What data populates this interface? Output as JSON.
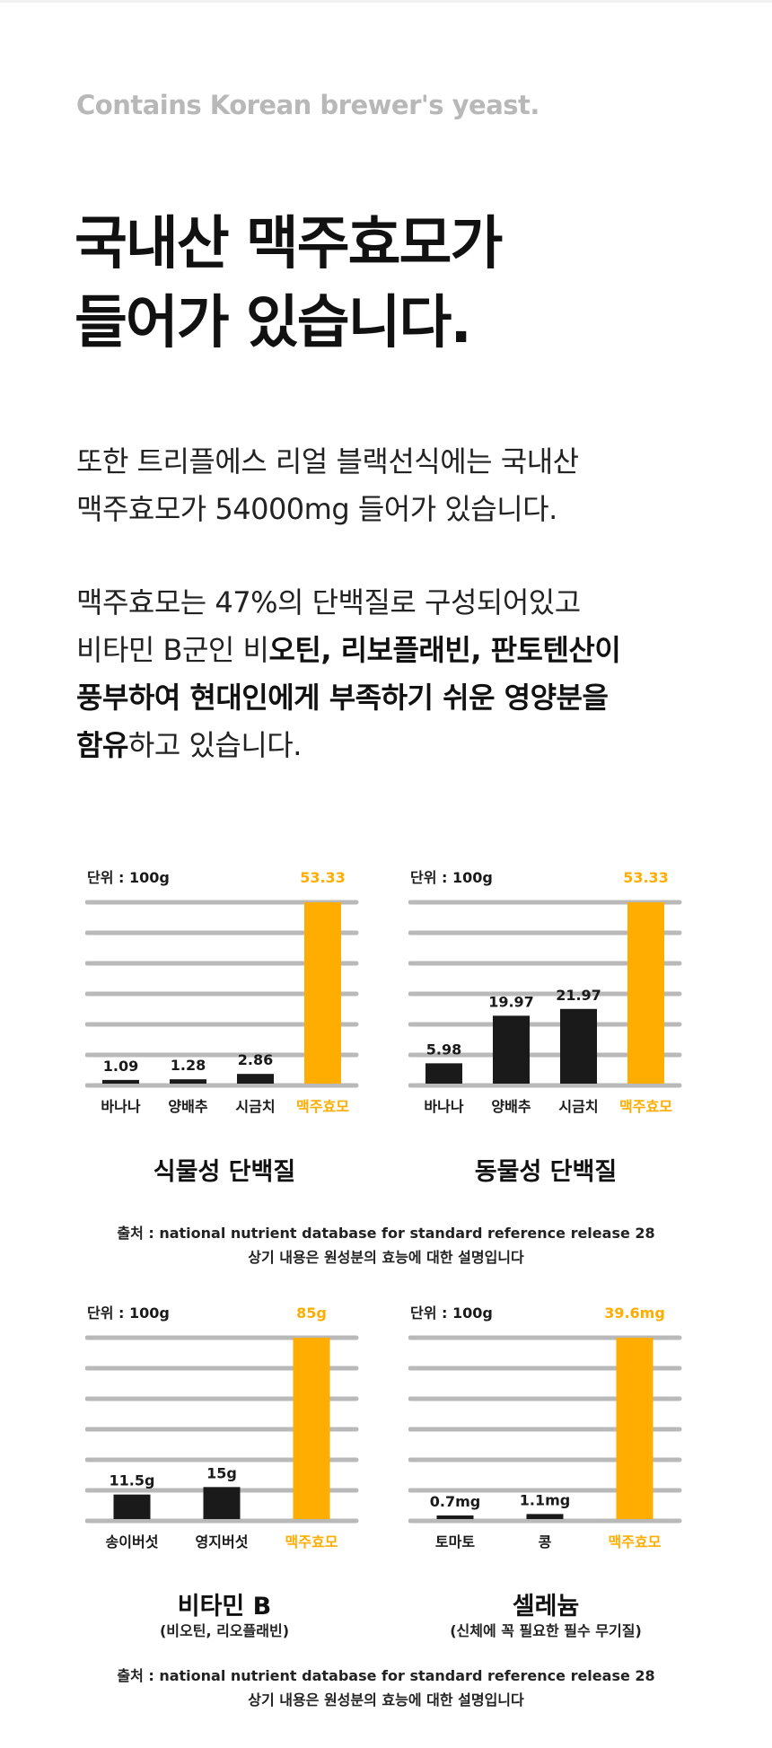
{
  "eyebrow": "Contains Korean brewer's yeast.",
  "headline": {
    "line1": "국내산 맥주효모가",
    "line2": "들어가 있습니다."
  },
  "para1": {
    "line1": "또한 트리플에스 리얼 블랙선식에는 국내산",
    "line2": "맥주효모가 54000mg 들어가 있습니다."
  },
  "para2": {
    "line1": "맥주효모는 47%의 단백질로 구성되어있고",
    "line2_a": "비타민 B군인 비",
    "line2_b": "오틴, 리보플래빈, 판토텐산이",
    "line3": "풍부하여 현대인에게 부족하기 쉬운 영양분을",
    "line4_a": "함유",
    "line4_b": "하고 있습니다."
  },
  "colors": {
    "accent": "#ffad00",
    "bar": "#1a1a1a",
    "grid": "#b9b9b9",
    "text": "#1a1a1a"
  },
  "source_notes": {
    "top": {
      "line1": "출처 : national nutrient database for standard reference release 28",
      "line2": "상기 내용은 원성분의 효능에 대한 설명입니다"
    },
    "bottom": {
      "line1": "출처 : national nutrient database for standard reference release 28",
      "line2": "상기 내용은 원성분의 효능에 대한 설명입니다"
    }
  },
  "chart_data": [
    {
      "type": "bar",
      "title": "식물성 단백질",
      "subtitle": "",
      "unit_label": "단위 : 100g",
      "categories": [
        "바나나",
        "양배추",
        "시금치",
        "맥주효모"
      ],
      "values": [
        1.09,
        1.28,
        2.86,
        53.33
      ],
      "value_labels": [
        "1.09",
        "1.28",
        "2.86",
        "53.33"
      ],
      "highlight": [
        false,
        false,
        false,
        true
      ],
      "ylim": [
        0,
        53.33
      ],
      "grid": true
    },
    {
      "type": "bar",
      "title": "동물성 단백질",
      "subtitle": "",
      "unit_label": "단위 : 100g",
      "categories": [
        "바나나",
        "양배추",
        "시금치",
        "맥주효모"
      ],
      "values": [
        5.98,
        19.97,
        21.97,
        53.33
      ],
      "value_labels": [
        "5.98",
        "19.97",
        "21.97",
        "53.33"
      ],
      "highlight": [
        false,
        false,
        false,
        true
      ],
      "ylim": [
        0,
        53.33
      ],
      "grid": true
    },
    {
      "type": "bar",
      "title": "비타민 B",
      "subtitle": "(비오틴, 리오플래빈)",
      "unit_label": "단위 : 100g",
      "categories": [
        "송이버섯",
        "영지버섯",
        "맥주효모"
      ],
      "values": [
        11.5,
        15,
        85
      ],
      "value_labels": [
        "11.5g",
        "15g",
        "85g"
      ],
      "highlight": [
        false,
        false,
        true
      ],
      "ylim": [
        0,
        85
      ],
      "grid": true
    },
    {
      "type": "bar",
      "title": "셀레늄",
      "subtitle": "(신체에 꼭 필요한 필수 무기질)",
      "unit_label": "단위 : 100g",
      "categories": [
        "토마토",
        "콩",
        "맥주효모"
      ],
      "values": [
        0.7,
        1.1,
        39.6
      ],
      "value_labels": [
        "0.7mg",
        "1.1mg",
        "39.6mg"
      ],
      "highlight": [
        false,
        false,
        true
      ],
      "ylim": [
        0,
        39.6
      ],
      "grid": true
    }
  ]
}
